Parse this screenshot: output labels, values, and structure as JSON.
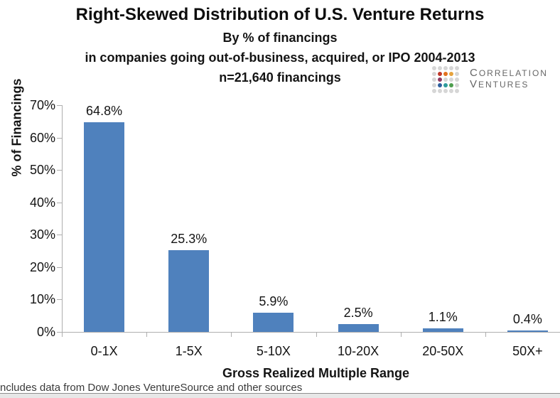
{
  "header": {
    "title": "Right-Skewed Distribution of U.S. Venture Returns",
    "subtitle1": "By % of financings",
    "subtitle2": "in companies going out-of-business, acquired, or IPO 2004-2013",
    "subtitle3": "n=21,640 financings"
  },
  "logo": {
    "line1": "CORRELATION",
    "line2": "VENTURES",
    "gray_dot_color": "#d6d6d6",
    "dot_grid": [
      [
        "#d6d6d6",
        "#d6d6d6",
        "#d6d6d6",
        "#d6d6d6",
        "#d6d6d6"
      ],
      [
        "#d6d6d6",
        "#c0392b",
        "#e2711d",
        "#e6a33e",
        "#d6d6d6"
      ],
      [
        "#d6d6d6",
        "#8e3a62",
        "#d6d6d6",
        "#d6d6d6",
        "#d6d6d6"
      ],
      [
        "#d6d6d6",
        "#2f5f9e",
        "#2e9c9c",
        "#4f9e4f",
        "#d6d6d6"
      ],
      [
        "#d6d6d6",
        "#d6d6d6",
        "#d6d6d6",
        "#d6d6d6",
        "#d6d6d6"
      ]
    ]
  },
  "chart_data": {
    "type": "bar",
    "title": "Right-Skewed Distribution of U.S. Venture Returns",
    "subtitle": [
      "By % of financings",
      "in companies going out-of-business, acquired, or IPO 2004-2013",
      "n=21,640 financings"
    ],
    "categories": [
      "0-1X",
      "1-5X",
      "5-10X",
      "10-20X",
      "20-50X",
      "50X+"
    ],
    "values": [
      64.8,
      25.3,
      5.9,
      2.5,
      1.1,
      0.4
    ],
    "value_labels": [
      "64.8%",
      "25.3%",
      "5.9%",
      "2.5%",
      "1.1%",
      "0.4%"
    ],
    "xlabel": "Gross Realized Multiple Range",
    "ylabel": "% of Financings",
    "ylim": [
      0,
      70
    ],
    "ytick_step": 10,
    "ytick_labels": [
      "0%",
      "10%",
      "20%",
      "30%",
      "40%",
      "50%",
      "60%",
      "70%"
    ],
    "grid": false,
    "legend": "none",
    "bar_color": "#4f81bd"
  },
  "footer": {
    "note": "ncludes data from Dow Jones VentureSource and other sources"
  }
}
